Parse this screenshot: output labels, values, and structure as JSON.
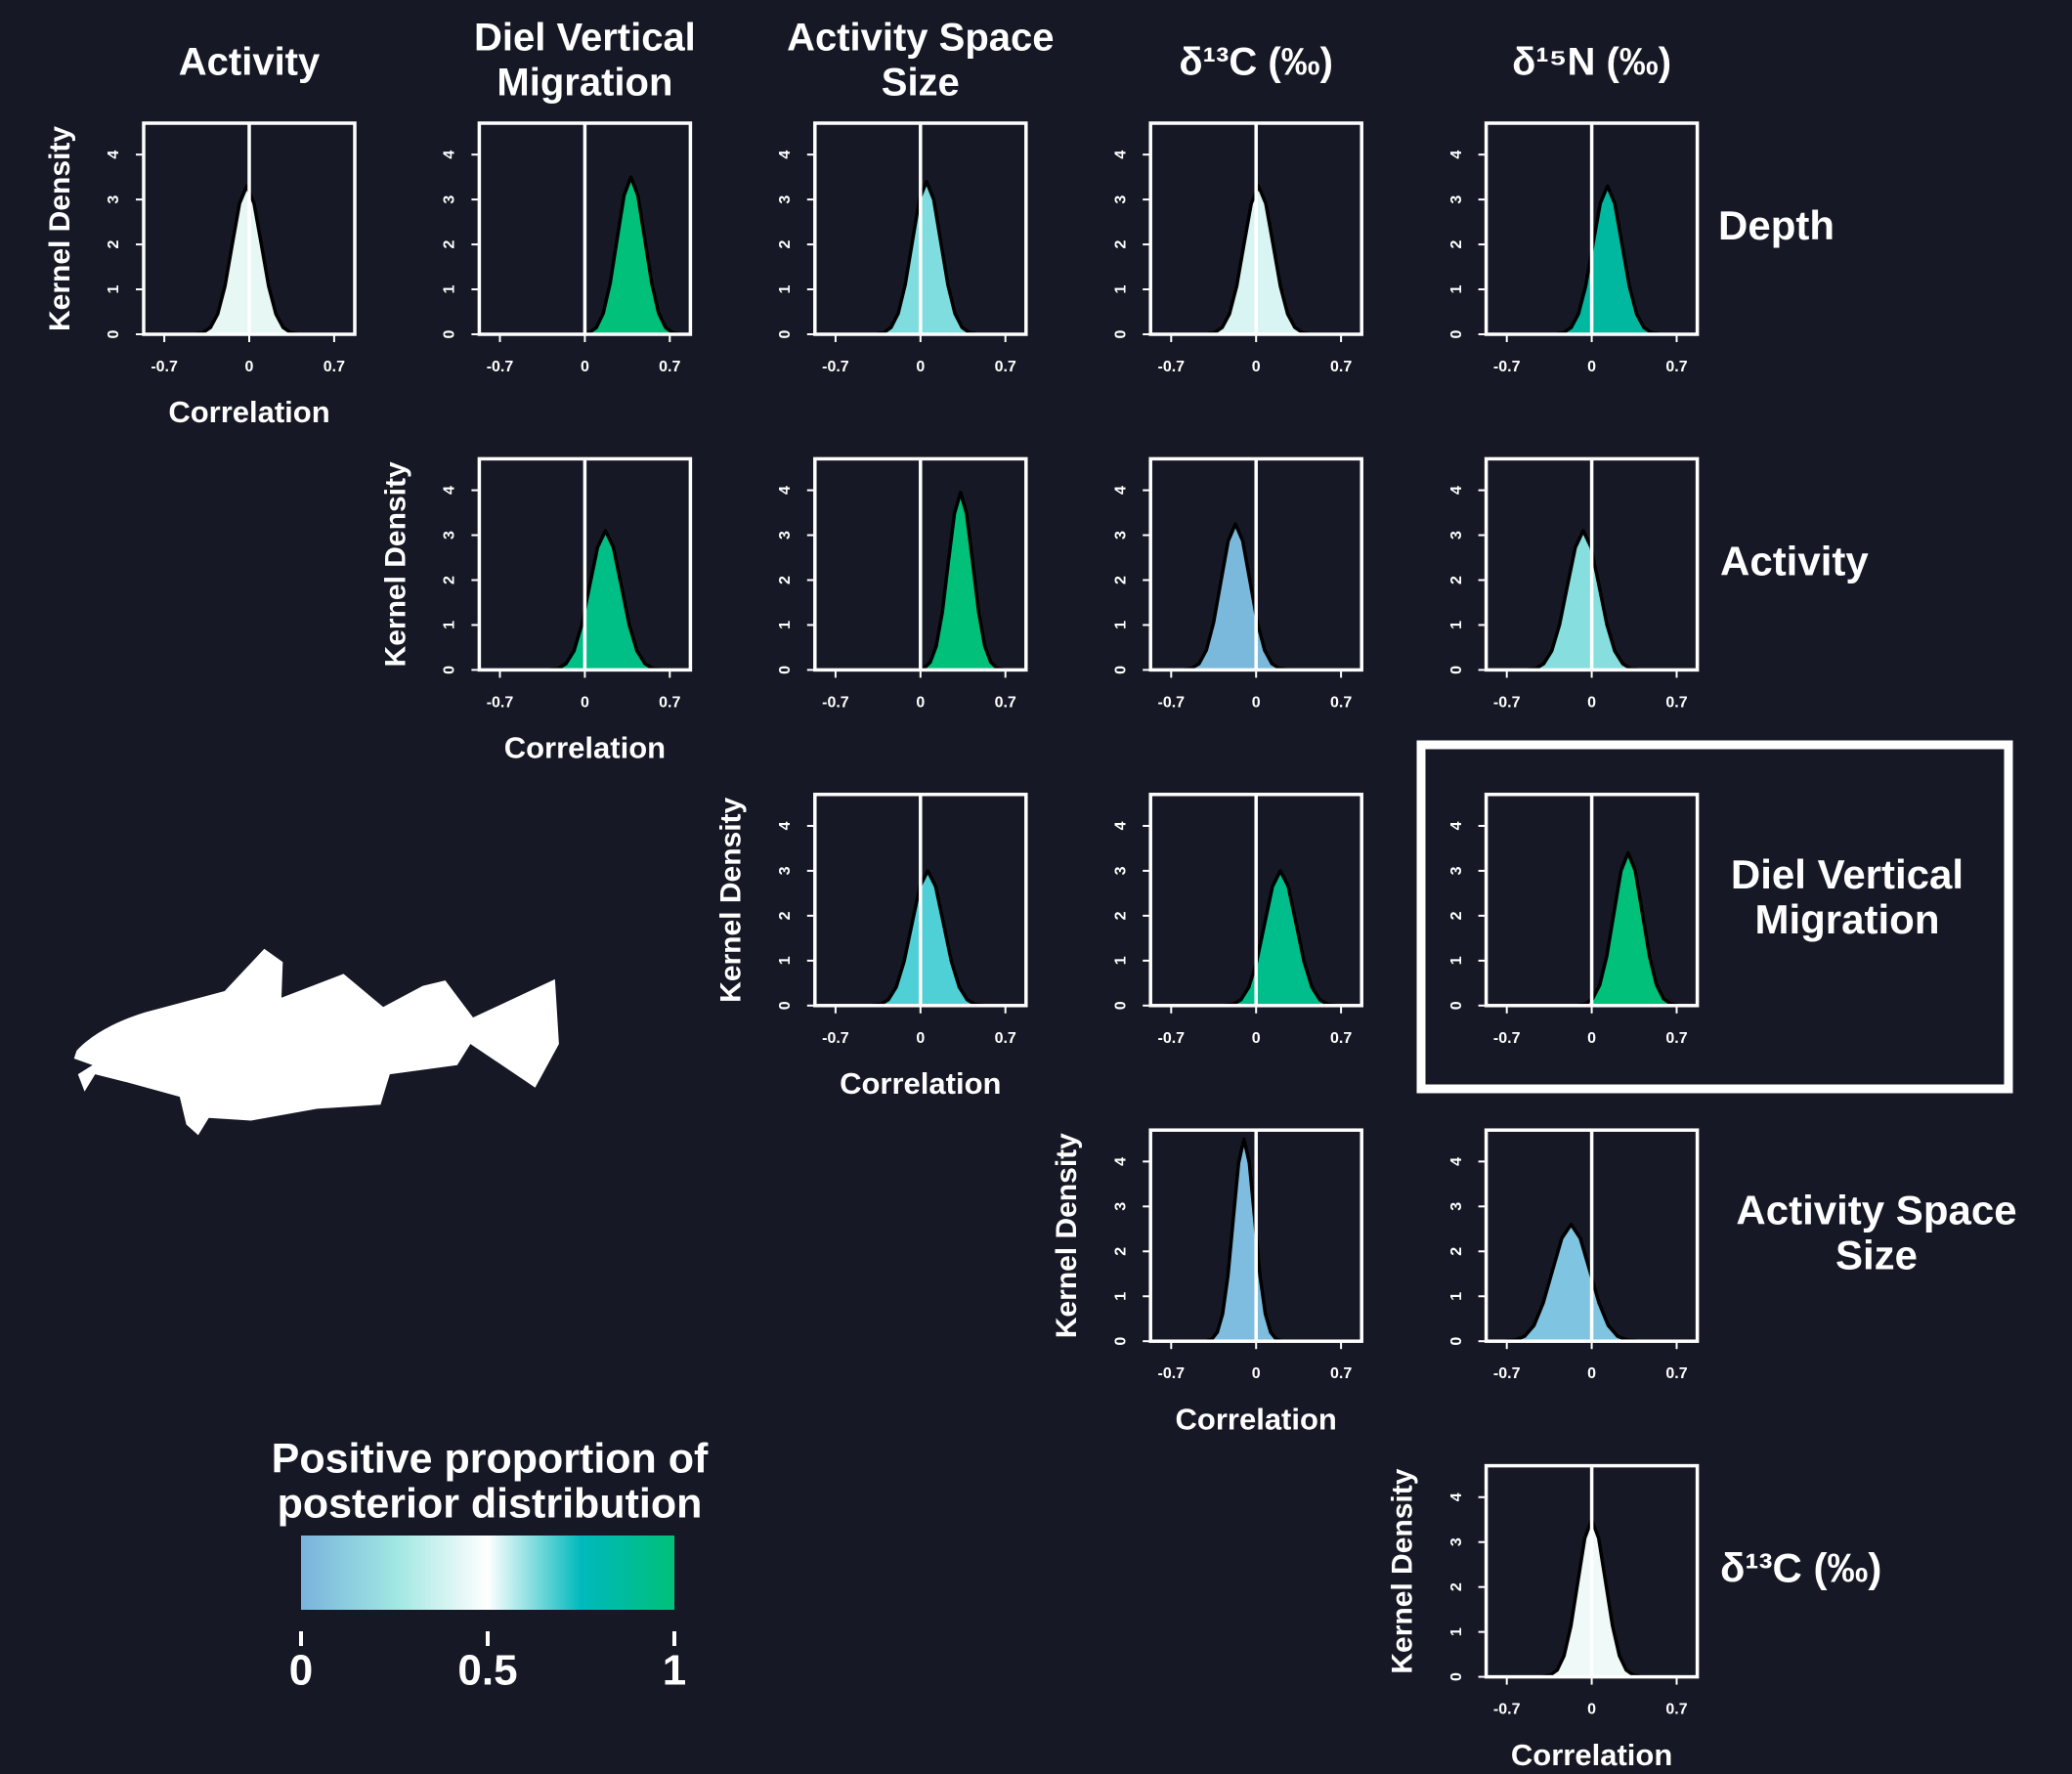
{
  "column_labels": [
    [
      "Activity"
    ],
    [
      "Diel Vertical",
      "Migration"
    ],
    [
      "Activity Space",
      "Size"
    ],
    [
      "δ¹³C (‰)"
    ],
    [
      "δ¹⁵N (‰)"
    ]
  ],
  "row_labels": [
    [
      "Depth"
    ],
    [
      "Activity"
    ],
    [
      "Diel Vertical",
      "Migration"
    ],
    [
      "Activity Space",
      "Size"
    ],
    [
      "δ¹³C (‰)"
    ]
  ],
  "chart_data": [
    {
      "type": "area",
      "color": "#e6f7f4",
      "xlabel": "Correlation",
      "ylabel": "Kernel Density",
      "xlim": [
        -0.87,
        0.87
      ],
      "ylim": [
        0,
        4.7
      ],
      "xticks": [
        -0.7,
        0,
        0.7
      ],
      "yticks": [
        0,
        1,
        2,
        3,
        4
      ],
      "vline": 0,
      "x": [
        -0.44,
        -0.38,
        -0.32,
        -0.26,
        -0.2,
        -0.14,
        -0.08,
        -0.02,
        0.04,
        0.1,
        0.16,
        0.22,
        0.28,
        0.34,
        0.4
      ],
      "values": [
        0.01,
        0.04,
        0.15,
        0.45,
        1.07,
        2.0,
        2.91,
        3.3,
        2.91,
        2.0,
        1.07,
        0.45,
        0.15,
        0.04,
        0.01
      ]
    },
    {
      "type": "area",
      "color": "#00c07a",
      "xlim": [
        -0.87,
        0.87
      ],
      "ylim": [
        0,
        4.7
      ],
      "xticks": [
        -0.7,
        0,
        0.7
      ],
      "yticks": [
        0,
        1,
        2,
        3,
        4
      ],
      "vline": 0,
      "x": [
        -0.019,
        0.038,
        0.095,
        0.152,
        0.209,
        0.266,
        0.323,
        0.38,
        0.437,
        0.494,
        0.551,
        0.608,
        0.665,
        0.722,
        0.779
      ],
      "values": [
        0.01,
        0.04,
        0.15,
        0.47,
        1.14,
        2.12,
        3.09,
        3.5,
        3.09,
        2.12,
        1.14,
        0.47,
        0.15,
        0.04,
        0.01
      ]
    },
    {
      "type": "area",
      "color": "#7fdde0",
      "xlim": [
        -0.87,
        0.87
      ],
      "ylim": [
        0,
        4.7
      ],
      "xticks": [
        -0.7,
        0,
        0.7
      ],
      "yticks": [
        0,
        1,
        2,
        3,
        4
      ],
      "vline": 0,
      "x": [
        -0.36,
        -0.301,
        -0.243,
        -0.184,
        -0.126,
        -0.067,
        -0.009,
        0.05,
        0.109,
        0.167,
        0.226,
        0.284,
        0.343,
        0.401,
        0.46
      ],
      "values": [
        0.01,
        0.04,
        0.15,
        0.46,
        1.1,
        2.06,
        3.0,
        3.4,
        3.0,
        2.06,
        1.1,
        0.46,
        0.15,
        0.04,
        0.01
      ]
    },
    {
      "type": "area",
      "color": "#d8f4f3",
      "xlim": [
        -0.87,
        0.87
      ],
      "ylim": [
        0,
        4.7
      ],
      "xticks": [
        -0.7,
        0,
        0.7
      ],
      "yticks": [
        0,
        1,
        2,
        3,
        4
      ],
      "vline": 0,
      "x": [
        -0.4,
        -0.34,
        -0.28,
        -0.22,
        -0.16,
        -0.1,
        -0.04,
        0.02,
        0.08,
        0.14,
        0.2,
        0.26,
        0.32,
        0.38,
        0.44
      ],
      "values": [
        0.01,
        0.04,
        0.15,
        0.45,
        1.07,
        2.0,
        2.91,
        3.3,
        2.91,
        2.0,
        1.07,
        0.45,
        0.15,
        0.04,
        0.01
      ]
    },
    {
      "type": "area",
      "color": "#00b8a0",
      "xlim": [
        -0.87,
        0.87
      ],
      "ylim": [
        0,
        4.7
      ],
      "xticks": [
        -0.7,
        0,
        0.7
      ],
      "yticks": [
        0,
        1,
        2,
        3,
        4
      ],
      "vline": 0,
      "x": [
        -0.29,
        -0.23,
        -0.17,
        -0.11,
        -0.05,
        0.01,
        0.07,
        0.13,
        0.19,
        0.25,
        0.31,
        0.37,
        0.43,
        0.49,
        0.55
      ],
      "values": [
        0.01,
        0.04,
        0.15,
        0.45,
        1.07,
        2.0,
        2.91,
        3.3,
        2.91,
        2.0,
        1.07,
        0.45,
        0.15,
        0.04,
        0.01
      ]
    },
    {
      "type": "area",
      "color": "#00bf86",
      "xlabel": "Correlation",
      "ylabel": "Kernel Density",
      "xlim": [
        -0.87,
        0.87
      ],
      "ylim": [
        0,
        4.7
      ],
      "xticks": [
        -0.7,
        0,
        0.7
      ],
      "yticks": [
        0,
        1,
        2,
        3,
        4
      ],
      "vline": 0,
      "x": [
        -0.285,
        -0.22,
        -0.155,
        -0.09,
        -0.025,
        0.04,
        0.105,
        0.17,
        0.235,
        0.3,
        0.365,
        0.43,
        0.495,
        0.56,
        0.625
      ],
      "values": [
        0.01,
        0.03,
        0.14,
        0.42,
        1.01,
        1.88,
        2.73,
        3.1,
        2.73,
        1.88,
        1.01,
        0.42,
        0.14,
        0.03,
        0.01
      ]
    },
    {
      "type": "area",
      "color": "#00c07a",
      "xlim": [
        -0.87,
        0.87
      ],
      "ylim": [
        0,
        4.7
      ],
      "xticks": [
        -0.7,
        0,
        0.7
      ],
      "yticks": [
        0,
        1,
        2,
        3,
        4
      ],
      "vline": 0,
      "x": [
        -0.02,
        0.03,
        0.08,
        0.13,
        0.18,
        0.23,
        0.28,
        0.33,
        0.38,
        0.43,
        0.48,
        0.53,
        0.58,
        0.63,
        0.68
      ],
      "values": [
        0.01,
        0.04,
        0.17,
        0.53,
        1.28,
        2.4,
        3.48,
        3.95,
        3.48,
        2.4,
        1.28,
        0.53,
        0.17,
        0.04,
        0.01
      ]
    },
    {
      "type": "area",
      "color": "#7ab8dc",
      "xlim": [
        -0.87,
        0.87
      ],
      "ylim": [
        0,
        4.7
      ],
      "xticks": [
        -0.7,
        0,
        0.7
      ],
      "yticks": [
        0,
        1,
        2,
        3,
        4
      ],
      "vline": 0,
      "x": [
        -0.59,
        -0.53,
        -0.47,
        -0.41,
        -0.35,
        -0.29,
        -0.23,
        -0.17,
        -0.11,
        -0.05,
        0.01,
        0.07,
        0.13,
        0.19,
        0.25
      ],
      "values": [
        0.01,
        0.04,
        0.14,
        0.44,
        1.06,
        1.97,
        2.87,
        3.25,
        2.87,
        1.97,
        1.06,
        0.44,
        0.14,
        0.04,
        0.01
      ]
    },
    {
      "type": "area",
      "color": "#86dede",
      "xlim": [
        -0.87,
        0.87
      ],
      "ylim": [
        0,
        4.7
      ],
      "xticks": [
        -0.7,
        0,
        0.7
      ],
      "yticks": [
        0,
        1,
        2,
        3,
        4
      ],
      "vline": 0,
      "x": [
        -0.525,
        -0.46,
        -0.395,
        -0.33,
        -0.265,
        -0.2,
        -0.135,
        -0.07,
        -0.005,
        0.06,
        0.125,
        0.19,
        0.255,
        0.32,
        0.385
      ],
      "values": [
        0.01,
        0.03,
        0.14,
        0.42,
        1.01,
        1.88,
        2.73,
        3.1,
        2.73,
        1.88,
        1.01,
        0.42,
        0.14,
        0.03,
        0.01
      ]
    },
    {
      "type": "area",
      "color": "#4fd0d6",
      "xlabel": "Correlation",
      "ylabel": "Kernel Density",
      "xlim": [
        -0.87,
        0.87
      ],
      "ylim": [
        0,
        4.7
      ],
      "xticks": [
        -0.7,
        0,
        0.7
      ],
      "yticks": [
        0,
        1,
        2,
        3,
        4
      ],
      "vline": 0,
      "x": [
        -0.395,
        -0.33,
        -0.265,
        -0.2,
        -0.135,
        -0.07,
        -0.005,
        0.06,
        0.125,
        0.19,
        0.255,
        0.32,
        0.385,
        0.45,
        0.515
      ],
      "values": [
        0.01,
        0.03,
        0.13,
        0.41,
        0.98,
        1.82,
        2.65,
        3.0,
        2.65,
        1.82,
        0.98,
        0.41,
        0.13,
        0.03,
        0.01
      ]
    },
    {
      "type": "area",
      "color": "#00be8c",
      "xlim": [
        -0.87,
        0.87
      ],
      "ylim": [
        0,
        4.7
      ],
      "xticks": [
        -0.7,
        0,
        0.7
      ],
      "yticks": [
        0,
        1,
        2,
        3,
        4
      ],
      "vline": 0,
      "x": [
        -0.255,
        -0.19,
        -0.125,
        -0.06,
        0.005,
        0.07,
        0.135,
        0.2,
        0.265,
        0.33,
        0.395,
        0.46,
        0.525,
        0.59,
        0.655
      ],
      "values": [
        0.01,
        0.03,
        0.13,
        0.41,
        0.98,
        1.82,
        2.65,
        3.0,
        2.65,
        1.82,
        0.98,
        0.41,
        0.13,
        0.03,
        0.01
      ]
    },
    {
      "type": "area",
      "color": "#00c07a",
      "highlight": true,
      "xlim": [
        -0.87,
        0.87
      ],
      "ylim": [
        0,
        4.7
      ],
      "xticks": [
        -0.7,
        0,
        0.7
      ],
      "yticks": [
        0,
        1,
        2,
        3,
        4
      ],
      "vline": 0,
      "x": [
        -0.11,
        -0.051,
        0.007,
        0.066,
        0.124,
        0.183,
        0.241,
        0.3,
        0.359,
        0.417,
        0.476,
        0.534,
        0.593,
        0.651,
        0.71
      ],
      "values": [
        0.01,
        0.04,
        0.15,
        0.46,
        1.1,
        2.06,
        3.0,
        3.4,
        3.0,
        2.06,
        1.1,
        0.46,
        0.15,
        0.04,
        0.01
      ]
    },
    {
      "type": "area",
      "color": "#7ebddf",
      "xlabel": "Correlation",
      "ylabel": "Kernel Density",
      "xlim": [
        -0.87,
        0.87
      ],
      "ylim": [
        0,
        4.7
      ],
      "xticks": [
        -0.7,
        0,
        0.7
      ],
      "yticks": [
        0,
        1,
        2,
        3,
        4
      ],
      "vline": 0,
      "x": [
        -0.408,
        -0.364,
        -0.32,
        -0.276,
        -0.232,
        -0.188,
        -0.144,
        -0.1,
        -0.056,
        -0.012,
        0.032,
        0.076,
        0.12,
        0.164,
        0.208
      ],
      "values": [
        0.01,
        0.05,
        0.2,
        0.61,
        1.46,
        2.73,
        3.97,
        4.5,
        3.97,
        2.73,
        1.46,
        0.61,
        0.2,
        0.05,
        0.01
      ]
    },
    {
      "type": "area",
      "color": "#7fc4e0",
      "xlim": [
        -0.87,
        0.87
      ],
      "ylim": [
        0,
        4.7
      ],
      "xticks": [
        -0.7,
        0,
        0.7
      ],
      "yticks": [
        0,
        1,
        2,
        3,
        4
      ],
      "vline": 0,
      "x": [
        -0.706,
        -0.629,
        -0.553,
        -0.476,
        -0.4,
        -0.323,
        -0.247,
        -0.17,
        -0.094,
        -0.017,
        0.06,
        0.136,
        0.213,
        0.289,
        0.366
      ],
      "values": [
        0.01,
        0.03,
        0.11,
        0.35,
        0.85,
        1.58,
        2.29,
        2.6,
        2.29,
        1.58,
        0.85,
        0.35,
        0.11,
        0.03,
        0.01
      ]
    },
    {
      "type": "area",
      "color": "#effaf8",
      "xlabel": "Correlation",
      "ylabel": "Kernel Density",
      "xlim": [
        -0.87,
        0.87
      ],
      "ylim": [
        0,
        4.7
      ],
      "xticks": [
        -0.7,
        0,
        0.7
      ],
      "yticks": [
        0,
        1,
        2,
        3,
        4
      ],
      "vline": 0,
      "x": [
        -0.399,
        -0.342,
        -0.285,
        -0.228,
        -0.171,
        -0.114,
        -0.057,
        0,
        0.057,
        0.114,
        0.171,
        0.228,
        0.285,
        0.342,
        0.399
      ],
      "values": [
        0.01,
        0.04,
        0.15,
        0.47,
        1.14,
        2.12,
        3.09,
        3.5,
        3.09,
        2.12,
        1.14,
        0.47,
        0.15,
        0.04,
        0.01
      ]
    },
    {
      "type": "colorbar",
      "title": [
        "Positive proportion of",
        "posterior distribution"
      ],
      "lim": [
        0,
        1
      ],
      "ticks": [
        0,
        0.5,
        1
      ],
      "colors": [
        "#7ab3dd",
        "#9fe6e2",
        "#ffffff",
        "#00b9bd",
        "#00c07a"
      ]
    }
  ]
}
